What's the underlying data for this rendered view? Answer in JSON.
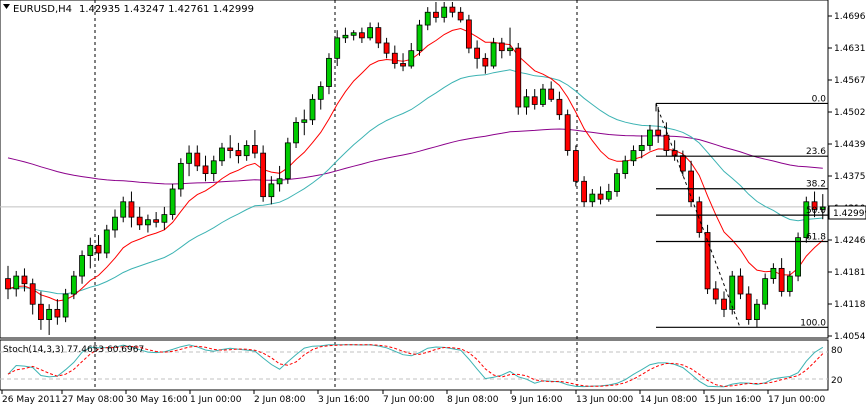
{
  "header": {
    "symbol": "EURUSD,H4",
    "ohlc": "1.42935 1.43247 1.42761 1.42999"
  },
  "price_axis": {
    "labels": [
      "1.46960",
      "1.46315",
      "1.45670",
      "1.45020",
      "1.44395",
      "1.43750",
      "1.43105",
      "1.42460",
      "1.41815",
      "1.41185",
      "1.40540"
    ],
    "current_price": "1.42999"
  },
  "time_axis": {
    "labels": [
      "26 May 2011",
      "27 May 08:00",
      "30 May 16:00",
      "1 Jun 00:00",
      "2 Jun 08:00",
      "3 Jun 16:00",
      "7 Jun 00:00",
      "8 Jun 08:00",
      "9 Jun 16:00",
      "13 Jun 00:00",
      "14 Jun 08:00",
      "15 Jun 16:00",
      "17 Jun 00:00"
    ]
  },
  "fibonacci": {
    "levels": [
      {
        "label": "0.0",
        "price": 1.4502
      },
      {
        "label": "23.6",
        "price": 1.4399
      },
      {
        "label": "38.2",
        "price": 1.43355
      },
      {
        "label": "50.0",
        "price": 1.4284
      },
      {
        "label": "61.8",
        "price": 1.42325
      },
      {
        "label": "100.0",
        "price": 1.4065
      }
    ]
  },
  "stochastic": {
    "title": "Stoch(14,3,3) 77.4653 60.6967",
    "axis_labels": [
      "80",
      "20"
    ]
  },
  "colors": {
    "bull": "#00cc00",
    "bear": "#ff0000",
    "ma_fast": "#ff0000",
    "ma_mid": "#3cb3b3",
    "ma_slow": "#8b008b",
    "stoch_main": "#3cb3b3",
    "stoch_signal": "#ff0000"
  },
  "chart_data": {
    "type": "candlestick",
    "ylim": [
      1.4048,
      1.47
    ],
    "candles": [
      [
        1.416,
        1.4185,
        1.412,
        1.414
      ],
      [
        1.414,
        1.4175,
        1.4125,
        1.4165
      ],
      [
        1.4165,
        1.418,
        1.4135,
        1.415
      ],
      [
        1.415,
        1.416,
        1.409,
        1.411
      ],
      [
        1.411,
        1.4135,
        1.406,
        1.408
      ],
      [
        1.408,
        1.411,
        1.405,
        1.41
      ],
      [
        1.41,
        1.412,
        1.407,
        1.4085
      ],
      [
        1.4085,
        1.414,
        1.4075,
        1.413
      ],
      [
        1.413,
        1.4175,
        1.412,
        1.4165
      ],
      [
        1.4165,
        1.4215,
        1.415,
        1.4205
      ],
      [
        1.4205,
        1.424,
        1.418,
        1.4225
      ],
      [
        1.4225,
        1.4245,
        1.4195,
        1.421
      ],
      [
        1.421,
        1.4265,
        1.42,
        1.4255
      ],
      [
        1.4255,
        1.4295,
        1.424,
        1.428
      ],
      [
        1.428,
        1.432,
        1.427,
        1.431
      ],
      [
        1.431,
        1.433,
        1.426,
        1.428
      ],
      [
        1.428,
        1.43,
        1.4255,
        1.4265
      ],
      [
        1.4265,
        1.4285,
        1.425,
        1.4275
      ],
      [
        1.4275,
        1.429,
        1.426,
        1.427
      ],
      [
        1.427,
        1.43,
        1.4255,
        1.4285
      ],
      [
        1.4285,
        1.4345,
        1.4275,
        1.4335
      ],
      [
        1.4335,
        1.4395,
        1.432,
        1.4385
      ],
      [
        1.4385,
        1.442,
        1.436,
        1.4405
      ],
      [
        1.4405,
        1.442,
        1.437,
        1.438
      ],
      [
        1.438,
        1.44,
        1.435,
        1.4365
      ],
      [
        1.4365,
        1.44,
        1.435,
        1.439
      ],
      [
        1.439,
        1.4425,
        1.438,
        1.4415
      ],
      [
        1.4415,
        1.444,
        1.4395,
        1.441
      ],
      [
        1.441,
        1.4425,
        1.4385,
        1.44
      ],
      [
        1.44,
        1.443,
        1.439,
        1.442
      ],
      [
        1.442,
        1.445,
        1.4395,
        1.4405
      ],
      [
        1.4405,
        1.442,
        1.431,
        1.432
      ],
      [
        1.432,
        1.436,
        1.4305,
        1.4345
      ],
      [
        1.4345,
        1.438,
        1.433,
        1.4355
      ],
      [
        1.4355,
        1.4435,
        1.4345,
        1.4425
      ],
      [
        1.4425,
        1.4475,
        1.4415,
        1.4465
      ],
      [
        1.4465,
        1.449,
        1.444,
        1.447
      ],
      [
        1.447,
        1.452,
        1.446,
        1.451
      ],
      [
        1.451,
        1.4545,
        1.449,
        1.4535
      ],
      [
        1.4535,
        1.46,
        1.452,
        1.459
      ],
      [
        1.459,
        1.4645,
        1.4575,
        1.463
      ],
      [
        1.463,
        1.465,
        1.462,
        1.4635
      ],
      [
        1.4635,
        1.4645,
        1.4625,
        1.464
      ],
      [
        1.464,
        1.465,
        1.462,
        1.463
      ],
      [
        1.463,
        1.466,
        1.4625,
        1.465
      ],
      [
        1.465,
        1.466,
        1.461,
        1.462
      ],
      [
        1.462,
        1.463,
        1.459,
        1.46
      ],
      [
        1.46,
        1.4615,
        1.457,
        1.458
      ],
      [
        1.458,
        1.46,
        1.4565,
        1.4575
      ],
      [
        1.4575,
        1.462,
        1.457,
        1.4605
      ],
      [
        1.4605,
        1.4665,
        1.4595,
        1.4655
      ],
      [
        1.4655,
        1.469,
        1.4645,
        1.468
      ],
      [
        1.468,
        1.47,
        1.466,
        1.467
      ],
      [
        1.467,
        1.47,
        1.466,
        1.469
      ],
      [
        1.469,
        1.47,
        1.467,
        1.468
      ],
      [
        1.468,
        1.469,
        1.466,
        1.4665
      ],
      [
        1.4665,
        1.4675,
        1.46,
        1.461
      ],
      [
        1.461,
        1.4625,
        1.457,
        1.459
      ],
      [
        1.459,
        1.46,
        1.456,
        1.4575
      ],
      [
        1.4575,
        1.463,
        1.457,
        1.462
      ],
      [
        1.462,
        1.463,
        1.459,
        1.4605
      ],
      [
        1.4605,
        1.465,
        1.4595,
        1.461
      ],
      [
        1.461,
        1.462,
        1.448,
        1.4495
      ],
      [
        1.4495,
        1.453,
        1.448,
        1.4515
      ],
      [
        1.4515,
        1.453,
        1.449,
        1.45
      ],
      [
        1.45,
        1.454,
        1.4495,
        1.453
      ],
      [
        1.453,
        1.4545,
        1.4505,
        1.451
      ],
      [
        1.451,
        1.4525,
        1.447,
        1.448
      ],
      [
        1.448,
        1.449,
        1.44,
        1.441
      ],
      [
        1.441,
        1.442,
        1.434,
        1.435
      ],
      [
        1.435,
        1.436,
        1.43,
        1.431
      ],
      [
        1.431,
        1.4335,
        1.43,
        1.4325
      ],
      [
        1.4325,
        1.434,
        1.4305,
        1.4315
      ],
      [
        1.4315,
        1.4345,
        1.431,
        1.433
      ],
      [
        1.433,
        1.4375,
        1.432,
        1.4365
      ],
      [
        1.4365,
        1.44,
        1.4355,
        1.439
      ],
      [
        1.439,
        1.442,
        1.438,
        1.441
      ],
      [
        1.441,
        1.444,
        1.4395,
        1.442
      ],
      [
        1.442,
        1.446,
        1.441,
        1.445
      ],
      [
        1.445,
        1.4495,
        1.4425,
        1.444
      ],
      [
        1.444,
        1.4465,
        1.44,
        1.441
      ],
      [
        1.441,
        1.443,
        1.439,
        1.44
      ],
      [
        1.44,
        1.441,
        1.436,
        1.437
      ],
      [
        1.437,
        1.439,
        1.43,
        1.431
      ],
      [
        1.431,
        1.432,
        1.424,
        1.425
      ],
      [
        1.425,
        1.4265,
        1.413,
        1.414
      ],
      [
        1.414,
        1.4155,
        1.411,
        1.412
      ],
      [
        1.412,
        1.4135,
        1.4085,
        1.41
      ],
      [
        1.41,
        1.4175,
        1.409,
        1.4165
      ],
      [
        1.4165,
        1.418,
        1.412,
        1.413
      ],
      [
        1.413,
        1.4145,
        1.407,
        1.408
      ],
      [
        1.408,
        1.412,
        1.4065,
        1.411
      ],
      [
        1.411,
        1.417,
        1.41,
        1.416
      ],
      [
        1.416,
        1.419,
        1.415,
        1.418
      ],
      [
        1.418,
        1.42,
        1.4125,
        1.4135
      ],
      [
        1.4135,
        1.4175,
        1.4125,
        1.4165
      ],
      [
        1.4165,
        1.425,
        1.4155,
        1.424
      ],
      [
        1.424,
        1.432,
        1.423,
        1.431
      ],
      [
        1.431,
        1.433,
        1.428,
        1.4295
      ],
      [
        1.4295,
        1.4325,
        1.4276,
        1.43
      ]
    ]
  }
}
